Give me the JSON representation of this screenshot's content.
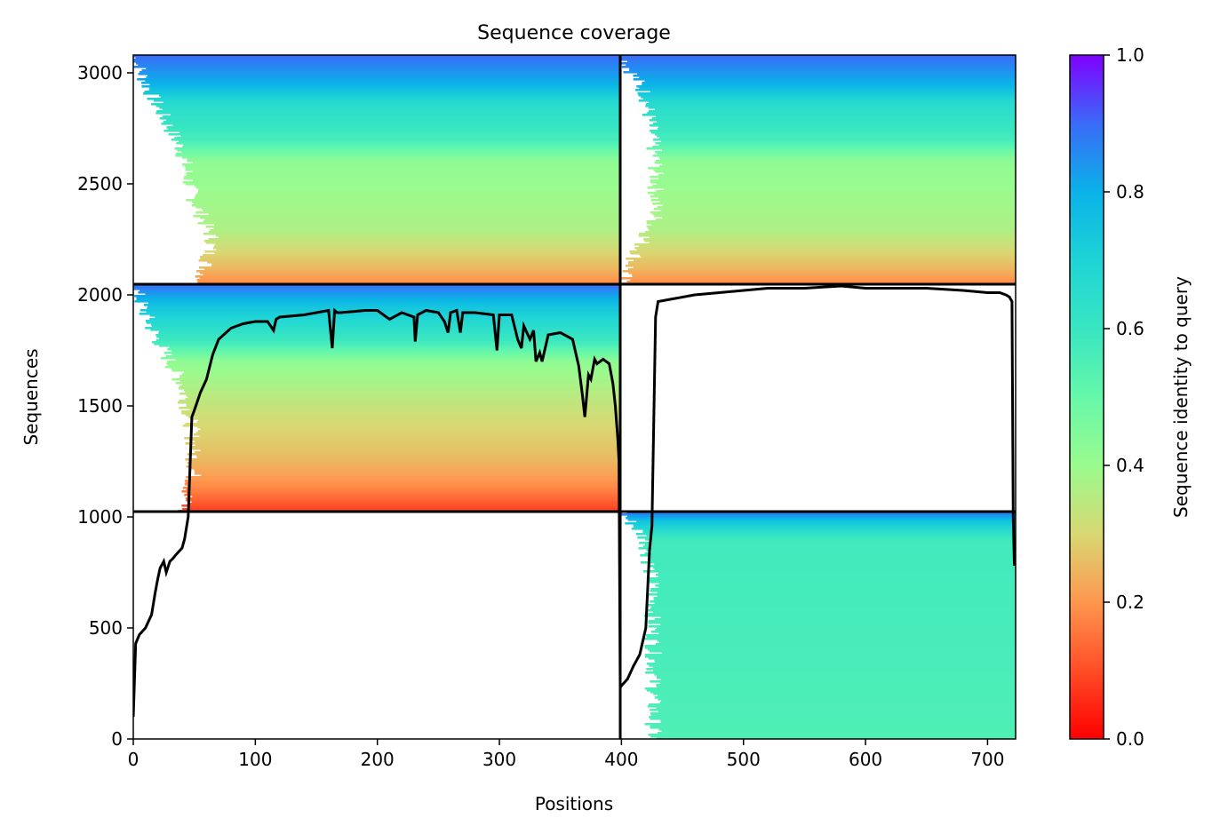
{
  "chart_data": {
    "type": "heatmap",
    "title": "Sequence coverage",
    "xlabel": "Positions",
    "ylabel": "Sequences",
    "xlim": [
      0,
      723
    ],
    "ylim": [
      0,
      3080
    ],
    "xticks": [
      0,
      100,
      200,
      300,
      400,
      500,
      600,
      700
    ],
    "yticks": [
      0,
      500,
      1000,
      1500,
      2000,
      2500,
      3000
    ],
    "colorbar": {
      "label": "Sequence identity to query",
      "range": [
        0.0,
        1.0
      ],
      "ticks": [
        "0.0",
        "0.2",
        "0.4",
        "0.6",
        "0.8",
        "1.0"
      ],
      "colormap": "rainbow_r"
    },
    "block_boundaries": {
      "chain_split_x": 399,
      "row_splits_y": [
        1024,
        2048
      ]
    },
    "blocks": [
      {
        "name": "top-left",
        "x_start": 0,
        "x_end": 399,
        "y_start": 2048,
        "y_end": 3080,
        "bands": [
          [
            3080,
            0.9
          ],
          [
            2950,
            0.8
          ],
          [
            2860,
            0.66
          ],
          [
            2700,
            0.57
          ],
          [
            2600,
            0.42
          ],
          [
            2300,
            0.37
          ],
          [
            2120,
            0.25
          ],
          [
            2048,
            0.18
          ]
        ],
        "left_gap": [
          [
            3080,
            0
          ],
          [
            2900,
            15
          ],
          [
            2650,
            40
          ],
          [
            2450,
            48
          ],
          [
            2250,
            65
          ],
          [
            2048,
            55
          ]
        ]
      },
      {
        "name": "top-right",
        "x_start": 399,
        "x_end": 723,
        "y_start": 2048,
        "y_end": 3080,
        "bands": [
          [
            3080,
            0.9
          ],
          [
            2950,
            0.8
          ],
          [
            2860,
            0.66
          ],
          [
            2700,
            0.57
          ],
          [
            2600,
            0.42
          ],
          [
            2300,
            0.37
          ],
          [
            2120,
            0.25
          ],
          [
            2048,
            0.18
          ]
        ],
        "left_gap": [
          [
            3080,
            400
          ],
          [
            2900,
            420
          ],
          [
            2600,
            428
          ],
          [
            2350,
            428
          ],
          [
            2048,
            399
          ]
        ]
      },
      {
        "name": "middle-left",
        "x_start": 0,
        "x_end": 399,
        "y_start": 1024,
        "y_end": 2048,
        "bands": [
          [
            2048,
            0.9
          ],
          [
            1950,
            0.75
          ],
          [
            1780,
            0.57
          ],
          [
            1700,
            0.42
          ],
          [
            1500,
            0.33
          ],
          [
            1250,
            0.25
          ],
          [
            1130,
            0.18
          ],
          [
            1024,
            0.08
          ]
        ],
        "left_gap": [
          [
            2048,
            0
          ],
          [
            1850,
            15
          ],
          [
            1600,
            40
          ],
          [
            1400,
            48
          ],
          [
            1200,
            50
          ],
          [
            1024,
            40
          ]
        ]
      },
      {
        "name": "bottom-right",
        "x_start": 399,
        "x_end": 723,
        "y_start": 0,
        "y_end": 1024,
        "bands": [
          [
            1024,
            0.9
          ],
          [
            980,
            0.75
          ],
          [
            900,
            0.58
          ],
          [
            0,
            0.55
          ]
        ],
        "left_gap": [
          [
            1024,
            400
          ],
          [
            900,
            420
          ],
          [
            700,
            425
          ],
          [
            400,
            426
          ],
          [
            0,
            426
          ]
        ]
      }
    ],
    "coverage_line": {
      "x": [
        0,
        2,
        5,
        10,
        15,
        18,
        20,
        22,
        25,
        27,
        30,
        32,
        35,
        40,
        42,
        45,
        48,
        50,
        55,
        60,
        65,
        70,
        80,
        90,
        100,
        110,
        115,
        117,
        120,
        140,
        160,
        163,
        165,
        167,
        170,
        190,
        200,
        210,
        220,
        230,
        231,
        233,
        240,
        250,
        255,
        258,
        260,
        265,
        268,
        270,
        280,
        295,
        298,
        300,
        305,
        310,
        315,
        318,
        320,
        325,
        328,
        330,
        333,
        335,
        340,
        350,
        360,
        365,
        368,
        370,
        373,
        375,
        378,
        380,
        385,
        390,
        393,
        395,
        397,
        398,
        399,
        400,
        405,
        410,
        415,
        420,
        423,
        425,
        428,
        430,
        440,
        460,
        480,
        500,
        520,
        550,
        580,
        600,
        620,
        650,
        680,
        700,
        710,
        715,
        718,
        720,
        721,
        722
      ],
      "y": [
        100,
        430,
        470,
        500,
        560,
        660,
        720,
        770,
        800,
        750,
        800,
        810,
        830,
        860,
        900,
        1000,
        1450,
        1480,
        1560,
        1620,
        1730,
        1800,
        1850,
        1870,
        1880,
        1880,
        1840,
        1890,
        1900,
        1910,
        1930,
        1760,
        1930,
        1920,
        1920,
        1930,
        1930,
        1890,
        1920,
        1900,
        1790,
        1910,
        1930,
        1920,
        1880,
        1830,
        1920,
        1930,
        1830,
        1920,
        1920,
        1910,
        1750,
        1910,
        1910,
        1910,
        1800,
        1760,
        1860,
        1800,
        1840,
        1700,
        1740,
        1700,
        1820,
        1830,
        1800,
        1680,
        1550,
        1450,
        1640,
        1620,
        1710,
        1690,
        1710,
        1690,
        1600,
        1500,
        1350,
        1250,
        230,
        240,
        270,
        330,
        380,
        500,
        850,
        960,
        1900,
        1970,
        1980,
        2000,
        2010,
        2020,
        2030,
        2030,
        2040,
        2030,
        2030,
        2030,
        2020,
        2010,
        2010,
        2000,
        1990,
        1970,
        1000,
        780
      ]
    }
  }
}
